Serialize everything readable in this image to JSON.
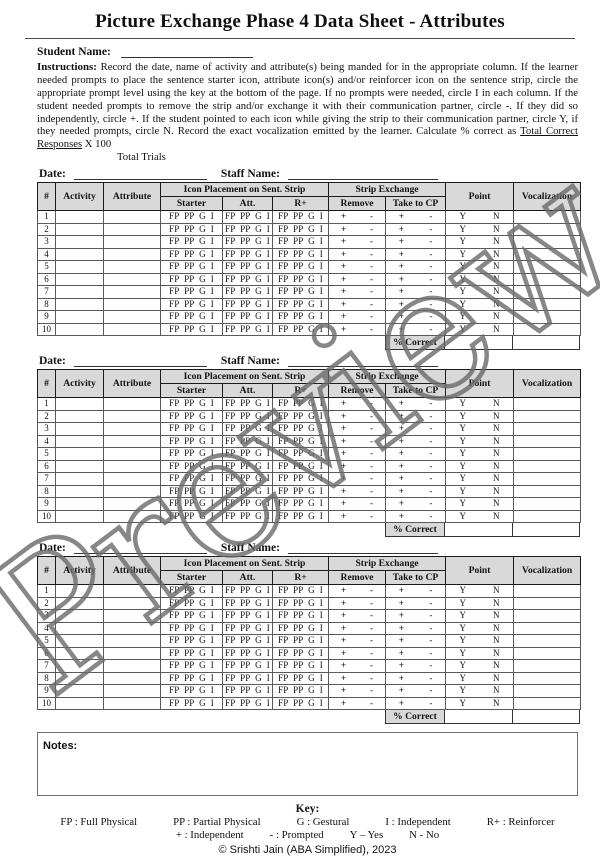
{
  "page": {
    "title": "Picture Exchange Phase 4 Data Sheet - Attributes",
    "student_name_label": "Student Name:",
    "watermark": "Preview"
  },
  "instructions": {
    "label": "Instructions:",
    "text": "Record the date, name of activity and attribute(s) being manded for in the appropriate column. If the learner needed prompts to place the sentence starter icon, attribute icon(s) and/or reinforcer icon on the sentence strip, circle the appropriate prompt level using the key at the bottom of the page. If no prompts were needed, circle I in each column. If the student needed prompts to remove the strip and/or exchange it with their communication partner, circle -. If they did so independently, circle +. If the student pointed to each icon while giving the strip to their communication partner, circle Y, if they needed prompts, circle N. Record the exact vocalization emitted by the learner. Calculate % correct as",
    "formula_numerator": "Total Correct Responses",
    "formula_suffix": "X 100",
    "formula_denominator": "Total Trials"
  },
  "trial_block": {
    "date_label": "Date:",
    "staff_label": "Staff Name:",
    "columns": {
      "num": "#",
      "activity": "Activity",
      "attribute": "Attribute",
      "icon_placement": "Icon Placement on Sent. Strip",
      "starter": "Starter",
      "att": "Att.",
      "r_plus": "R+",
      "strip_exchange": "Strip Exchange",
      "remove": "Remove",
      "take_to_cp": "Take to CP",
      "point": "Point",
      "vocalization": "Vocalization"
    },
    "rows": [
      "1",
      "2",
      "3",
      "4",
      "5",
      "6",
      "7",
      "8",
      "9",
      "10"
    ],
    "prompt_levels_text": "FP PP G I",
    "plus": "+",
    "minus": "-",
    "yes": "Y",
    "no": "N",
    "percent_correct_label": "% Correct"
  },
  "notes": {
    "label": "Notes:"
  },
  "key": {
    "title": "Key:",
    "line1": [
      "FP : Full Physical",
      "PP : Partial Physical",
      "G : Gestural",
      "I : Independent",
      "R+ : Reinforcer"
    ],
    "line2": [
      "+ : Independent",
      "- : Prompted",
      "Y – Yes",
      "N - No"
    ]
  },
  "footer": {
    "copyright": "© Srishti Jain (ABA Simplified), 2023"
  },
  "colors": {
    "header_fill": "#d9d9d9",
    "border_dark": "#1a1a1a",
    "watermark": "#6a6a6a"
  }
}
